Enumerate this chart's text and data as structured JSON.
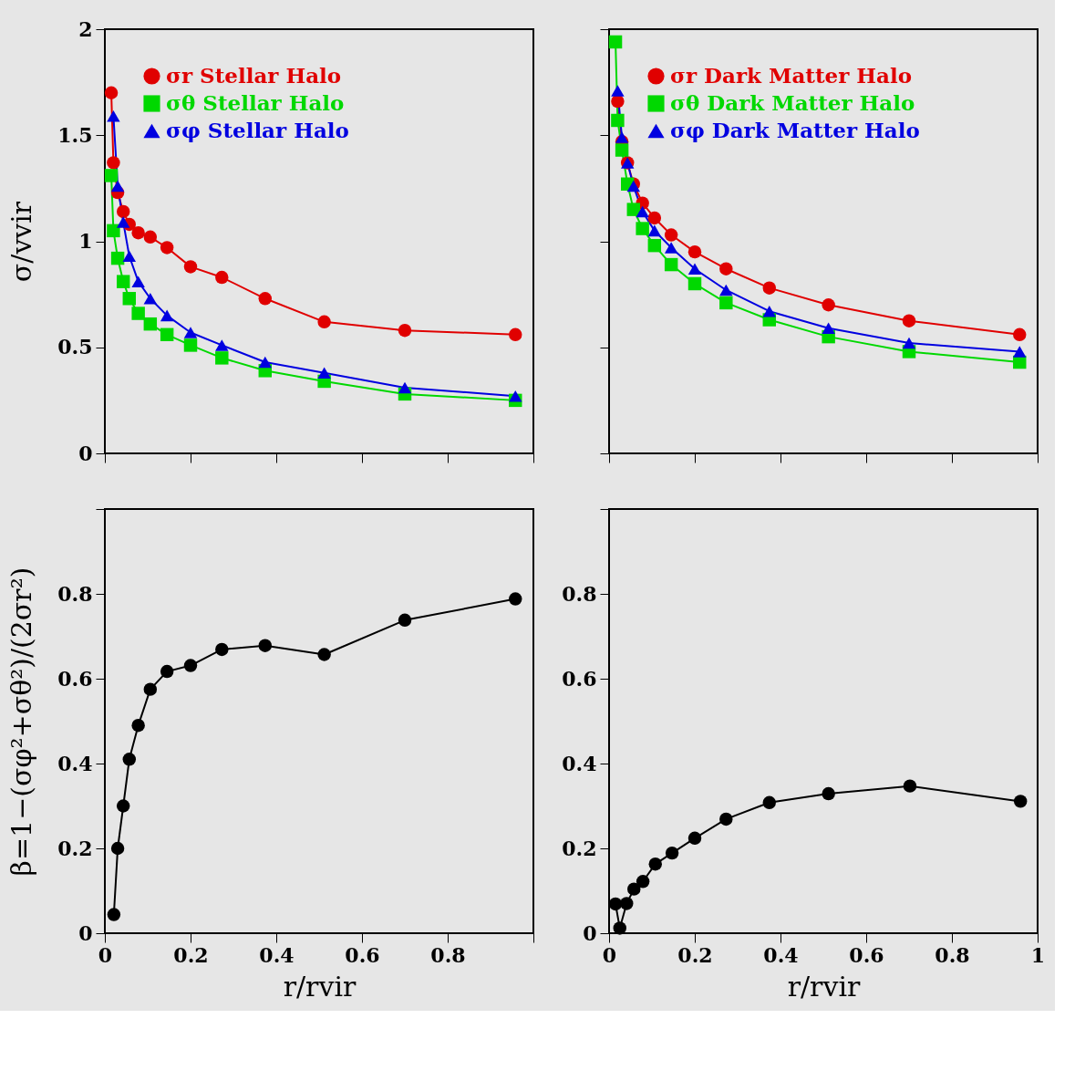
{
  "chart_data": [
    {
      "type": "line",
      "ylabel": "σ/vvir",
      "xlim": [
        0,
        1
      ],
      "xticks": [
        0,
        0.2,
        0.4,
        0.6,
        0.8,
        1
      ],
      "ylim": [
        0,
        2
      ],
      "yticks": [
        0,
        0.5,
        1,
        1.5,
        2
      ],
      "tick_labels": "y",
      "legend": "top left",
      "grid": false,
      "x": [
        0.015,
        0.02,
        0.03,
        0.043,
        0.057,
        0.078,
        0.106,
        0.145,
        0.2,
        0.273,
        0.374,
        0.512,
        0.7,
        0.958
      ],
      "series": [
        {
          "name": "σr Stellar Halo",
          "color": "#e00000",
          "marker": "circle",
          "values": [
            1.7,
            1.37,
            1.23,
            1.14,
            1.08,
            1.04,
            1.02,
            0.97,
            0.88,
            0.83,
            0.73,
            0.62,
            0.58,
            0.56
          ]
        },
        {
          "name": "σθ Stellar Halo",
          "color": "#00d800",
          "marker": "square",
          "values": [
            1.31,
            1.05,
            0.92,
            0.81,
            0.73,
            0.66,
            0.61,
            0.56,
            0.51,
            0.45,
            0.39,
            0.34,
            0.28,
            0.25
          ]
        },
        {
          "name": "σφ Stellar Halo",
          "color": "#0000e0",
          "marker": "triangle",
          "values": [
            null,
            1.59,
            1.26,
            1.09,
            0.93,
            0.81,
            0.73,
            0.65,
            0.57,
            0.51,
            0.43,
            0.38,
            0.31,
            0.27
          ]
        }
      ]
    },
    {
      "type": "line",
      "xlim": [
        0,
        1
      ],
      "xticks": [
        0,
        0.2,
        0.4,
        0.6,
        0.8,
        1
      ],
      "ylim": [
        0,
        2
      ],
      "yticks": [
        0,
        0.5,
        1,
        1.5,
        2
      ],
      "tick_labels": false,
      "legend": "top left",
      "grid": false,
      "x": [
        0.015,
        0.02,
        0.03,
        0.043,
        0.057,
        0.078,
        0.106,
        0.145,
        0.2,
        0.273,
        0.374,
        0.512,
        0.7,
        0.958
      ],
      "series": [
        {
          "name": "σr Dark Matter Halo",
          "color": "#e00000",
          "marker": "circle",
          "values": [
            null,
            1.66,
            1.47,
            1.37,
            1.27,
            1.18,
            1.11,
            1.03,
            0.95,
            0.87,
            0.78,
            0.7,
            0.625,
            0.56
          ]
        },
        {
          "name": "σθ Dark Matter Halo",
          "color": "#00d800",
          "marker": "square",
          "values": [
            1.94,
            1.57,
            1.43,
            1.27,
            1.15,
            1.06,
            0.98,
            0.89,
            0.8,
            0.71,
            0.63,
            0.55,
            0.48,
            0.43
          ]
        },
        {
          "name": "σφ Dark Matter Halo",
          "color": "#0000e0",
          "marker": "triangle",
          "values": [
            null,
            1.71,
            1.49,
            1.37,
            1.26,
            1.14,
            1.05,
            0.97,
            0.87,
            0.77,
            0.67,
            0.59,
            0.52,
            0.48
          ]
        }
      ]
    },
    {
      "type": "line",
      "xlabel": "r/rvir",
      "ylabel": "β=1−(σφ²+σθ²)/(2σr²)",
      "xlim": [
        0,
        1
      ],
      "xticks": [
        0,
        0.2,
        0.4,
        0.6,
        0.8,
        {
          "value": 1,
          "label": null
        }
      ],
      "ylim": [
        0,
        1
      ],
      "yticks": [
        0,
        0.2,
        0.4,
        0.6,
        0.8,
        {
          "value": 1,
          "label": null
        }
      ],
      "marker": "circle",
      "grid": false,
      "x": [
        0.021,
        0.03,
        0.043,
        0.057,
        0.078,
        0.106,
        0.145,
        0.2,
        0.273,
        0.374,
        0.512,
        0.7,
        0.958
      ],
      "series": [
        {
          "color": "#000000",
          "values": [
            0.044,
            0.2,
            0.3,
            0.41,
            0.49,
            0.575,
            0.617,
            0.631,
            0.669,
            0.678,
            0.657,
            0.738,
            0.788
          ]
        }
      ]
    },
    {
      "type": "line",
      "xlabel": "r/rvir",
      "xlim": [
        0,
        1
      ],
      "xticks": [
        0,
        0.2,
        0.4,
        0.6,
        0.8,
        1
      ],
      "ylim": [
        0,
        1
      ],
      "yticks": [
        0,
        0.2,
        0.4,
        0.6,
        0.8,
        {
          "value": 1,
          "label": null
        }
      ],
      "marker": "circle",
      "grid": false,
      "x": [
        0.015,
        0.025,
        0.041,
        0.058,
        0.079,
        0.108,
        0.147,
        0.2,
        0.273,
        0.374,
        0.512,
        0.702,
        0.96
      ],
      "series": [
        {
          "color": "#000000",
          "values": [
            0.069,
            0.012,
            0.07,
            0.104,
            0.122,
            0.163,
            0.189,
            0.224,
            0.269,
            0.308,
            0.329,
            0.347,
            0.311
          ]
        }
      ]
    }
  ]
}
